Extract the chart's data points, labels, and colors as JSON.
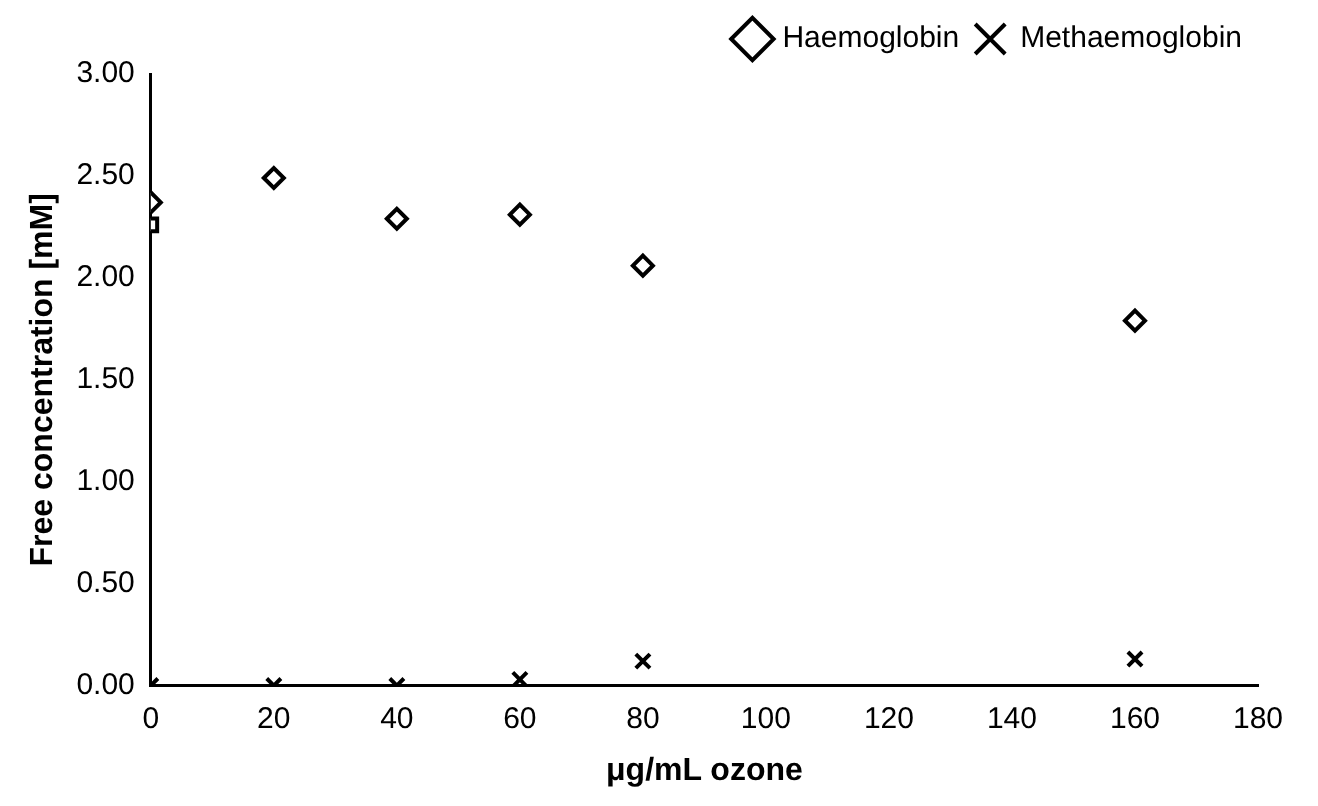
{
  "chart_data": {
    "type": "scatter",
    "xlabel": "μg/mL ozone",
    "ylabel": "Free concentration [mM]",
    "xlim": [
      0,
      180
    ],
    "xticks": [
      0,
      20,
      40,
      60,
      80,
      100,
      120,
      140,
      160,
      180
    ],
    "ylim": [
      0,
      3
    ],
    "yticks": [
      {
        "value": 0,
        "label": "0.00"
      },
      {
        "value": 0.5,
        "label": "0.50"
      },
      {
        "value": 1,
        "label": "1.00"
      },
      {
        "value": 1.5,
        "label": "1.50"
      },
      {
        "value": 2,
        "label": "2.00"
      },
      {
        "value": 2.5,
        "label": "2.50"
      },
      {
        "value": 3,
        "label": "3.00"
      }
    ],
    "grid": false,
    "legend": "top right",
    "series": [
      {
        "name": "Haemoglobin",
        "color": "#000000",
        "marker": "diamond",
        "x": [
          0,
          20,
          40,
          60,
          80,
          160
        ],
        "values": [
          2.37,
          2.49,
          2.29,
          2.31,
          2.06,
          1.79
        ]
      },
      {
        "name": "Methaemoglobin",
        "color": "#000000",
        "marker": "cross",
        "x": [
          0,
          20,
          40,
          60,
          80,
          160
        ],
        "values": [
          0,
          0,
          0,
          0.03,
          0.12,
          0.13
        ]
      },
      {
        "color": "#000000",
        "marker": "square",
        "x": [
          0
        ],
        "values": [
          2.26
        ]
      }
    ]
  }
}
